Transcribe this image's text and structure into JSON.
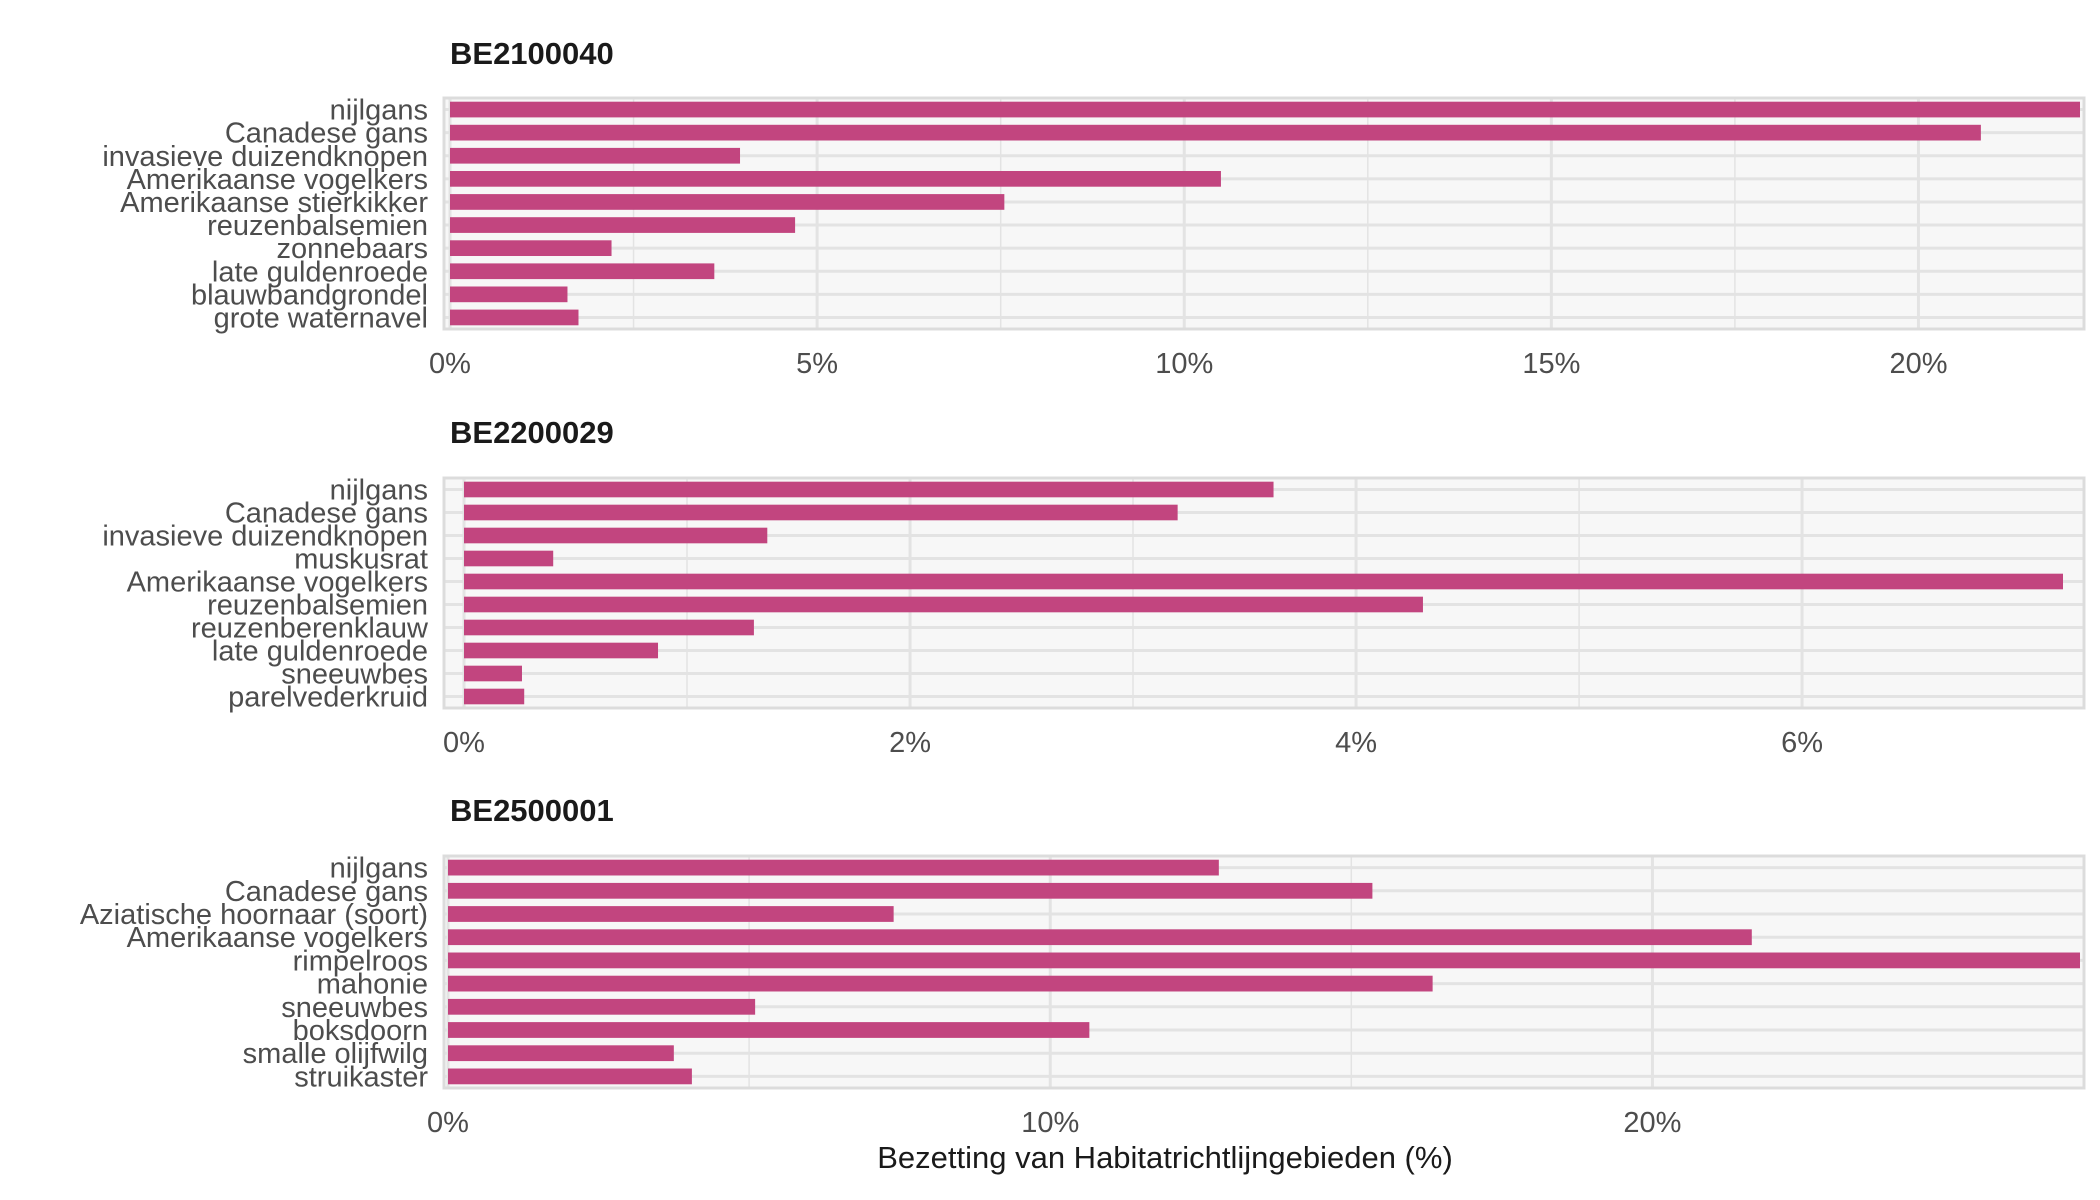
{
  "colors": {
    "bar": "#c2457f",
    "panel_background": "#f7f7f7",
    "grid": "#e3e3e3",
    "panel_border": "#dcdcdc",
    "text": "#4d4d4d",
    "title": "#1a1a1a"
  },
  "chart_data": [
    {
      "type": "bar",
      "orientation": "horizontal",
      "title": "BE2100040",
      "categories": [
        "nijlgans",
        "Canadese gans",
        "invasieve duizendknopen",
        "Amerikaanse vogelkers",
        "Amerikaanse stierkikker",
        "reuzenbalsemien",
        "zonnebaars",
        "late guldenroede",
        "blauwbandgrondel",
        "grote waternavel"
      ],
      "values": [
        22.2,
        20.85,
        3.95,
        10.5,
        7.55,
        4.7,
        2.2,
        3.6,
        1.6,
        1.75
      ],
      "xlim": [
        0,
        22.2
      ],
      "ticks": [
        0,
        5,
        10,
        15,
        20
      ],
      "tick_labels": [
        "0%",
        "5%",
        "10%",
        "15%",
        "20%"
      ],
      "grid": true
    },
    {
      "type": "bar",
      "orientation": "horizontal",
      "title": "BE2200029",
      "categories": [
        "nijlgans",
        "Canadese gans",
        "invasieve duizendknopen",
        "muskusrat",
        "Amerikaanse vogelkers",
        "reuzenbalsemien",
        "reuzenberenklauw",
        "late guldenroede",
        "sneeuwbes",
        "parelvederkruid"
      ],
      "values": [
        3.63,
        3.2,
        1.36,
        0.4,
        7.17,
        4.3,
        1.3,
        0.87,
        0.26,
        0.27
      ],
      "xlim": [
        0,
        7.17
      ],
      "ticks": [
        0,
        2,
        4,
        6
      ],
      "tick_labels": [
        "0%",
        "2%",
        "4%",
        "6%"
      ],
      "grid": true
    },
    {
      "type": "bar",
      "orientation": "horizontal",
      "title": "BE2500001",
      "categories": [
        "nijlgans",
        "Canadese gans",
        "Aziatische hoornaar (soort)",
        "Amerikaanse vogelkers",
        "rimpelroos",
        "mahonie",
        "sneeuwbes",
        "boksdoorn",
        "smalle olijfwilg",
        "struikaster"
      ],
      "values": [
        12.8,
        15.35,
        7.4,
        21.65,
        27.1,
        16.35,
        5.1,
        10.65,
        3.75,
        4.05
      ],
      "xlim": [
        0,
        27.1
      ],
      "ticks": [
        0,
        10,
        20
      ],
      "tick_labels": [
        "0%",
        "10%",
        "20%"
      ],
      "grid": true,
      "xlabel": "Bezetting van Habitatrichtlijngebieden (%)"
    }
  ]
}
